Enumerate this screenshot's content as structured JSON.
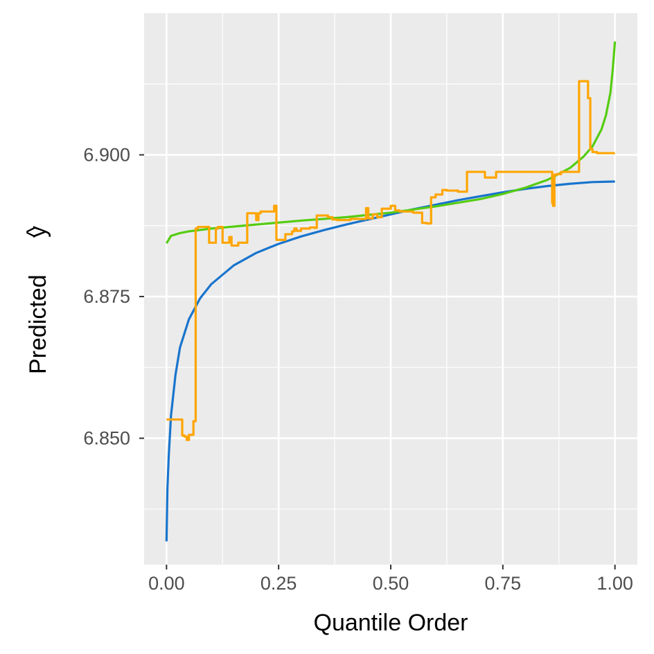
{
  "chart_data": {
    "type": "line",
    "title": "",
    "xlabel": "Quantile Order",
    "ylabel": "Predicted",
    "ylabel_hat": "^",
    "ylabel_var": "y",
    "xlim": [
      -0.05,
      1.05
    ],
    "ylim": [
      6.8277,
      6.925
    ],
    "x_ticks": [
      {
        "value": 0.0,
        "label": "0.00"
      },
      {
        "value": 0.25,
        "label": "0.25"
      },
      {
        "value": 0.5,
        "label": "0.50"
      },
      {
        "value": 0.75,
        "label": "0.75"
      },
      {
        "value": 1.0,
        "label": "1.00"
      }
    ],
    "y_ticks": [
      {
        "value": 6.85,
        "label": "6.850"
      },
      {
        "value": 6.875,
        "label": "6.875"
      },
      {
        "value": 6.9,
        "label": "6.900"
      }
    ],
    "y_minor_ticks": [
      6.8375,
      6.8625,
      6.8875,
      6.9125
    ],
    "x_minor_ticks": [
      0.125,
      0.375,
      0.625,
      0.875
    ],
    "grid": true,
    "legend": "none",
    "colors": {
      "panel": "#ebebeb",
      "grid": "#ffffff",
      "blue": "#1874cd",
      "green": "#55cc11",
      "orange": "#ffa500"
    },
    "series": [
      {
        "color": "#1874cd",
        "x": [
          0.0,
          0.002,
          0.005,
          0.01,
          0.02,
          0.03,
          0.05,
          0.075,
          0.1,
          0.15,
          0.2,
          0.25,
          0.3,
          0.35,
          0.4,
          0.45,
          0.5,
          0.55,
          0.6,
          0.65,
          0.7,
          0.75,
          0.8,
          0.85,
          0.9,
          0.95,
          1.0
        ],
        "y": [
          6.8318,
          6.8411,
          6.847,
          6.854,
          6.8612,
          6.866,
          6.871,
          6.8747,
          6.8772,
          6.8805,
          6.8827,
          6.8843,
          6.8856,
          6.8867,
          6.8877,
          6.8886,
          6.8895,
          6.8904,
          6.8912,
          6.892,
          6.8927,
          6.8934,
          6.894,
          6.8945,
          6.8949,
          6.8952,
          6.8953
        ]
      },
      {
        "color": "#55cc11",
        "x": [
          0.0,
          0.01,
          0.03,
          0.05,
          0.1,
          0.2,
          0.3,
          0.4,
          0.5,
          0.6,
          0.7,
          0.75,
          0.8,
          0.85,
          0.9,
          0.93,
          0.95,
          0.97,
          0.98,
          0.99,
          0.995,
          1.0
        ],
        "y": [
          6.8844,
          6.8857,
          6.8862,
          6.8865,
          6.887,
          6.8877,
          6.8884,
          6.889,
          6.8898,
          6.8909,
          6.8922,
          6.8931,
          6.8942,
          6.8956,
          6.8977,
          6.8997,
          6.9015,
          6.9045,
          6.907,
          6.911,
          6.915,
          6.92
        ]
      },
      {
        "color": "#ffa500",
        "step": true,
        "x": [
          0.0,
          0.035,
          0.04,
          0.045,
          0.05,
          0.06,
          0.065,
          0.07,
          0.095,
          0.1,
          0.11,
          0.115,
          0.125,
          0.14,
          0.145,
          0.16,
          0.18,
          0.2,
          0.205,
          0.21,
          0.24,
          0.245,
          0.265,
          0.28,
          0.285,
          0.29,
          0.3,
          0.32,
          0.33,
          0.335,
          0.36,
          0.37,
          0.38,
          0.41,
          0.445,
          0.45,
          0.46,
          0.47,
          0.48,
          0.5,
          0.51,
          0.52,
          0.55,
          0.57,
          0.58,
          0.59,
          0.6,
          0.615,
          0.625,
          0.65,
          0.67,
          0.675,
          0.71,
          0.735,
          0.86,
          0.862,
          0.865,
          0.87,
          0.88,
          0.9,
          0.92,
          0.93,
          0.94,
          0.945,
          0.95,
          0.96,
          1.0
        ],
        "y": [
          6.8533,
          6.8505,
          6.8503,
          6.8497,
          6.8506,
          6.853,
          6.887,
          6.8873,
          6.8845,
          6.8845,
          6.887,
          6.8873,
          6.8845,
          6.8855,
          6.884,
          6.8845,
          6.8897,
          6.8885,
          6.8897,
          6.89,
          6.891,
          6.885,
          6.886,
          6.8865,
          6.887,
          6.8866,
          6.887,
          6.8872,
          6.8871,
          6.8893,
          6.889,
          6.8886,
          6.8885,
          6.8887,
          6.8906,
          6.8888,
          6.8895,
          6.889,
          6.8905,
          6.891,
          6.8902,
          6.89,
          6.8898,
          6.888,
          6.8879,
          6.8925,
          6.893,
          6.8938,
          6.8937,
          6.8935,
          6.897,
          6.897,
          6.896,
          6.897,
          6.8915,
          6.891,
          6.8965,
          6.8966,
          6.897,
          6.897,
          6.913,
          6.913,
          6.91,
          6.901,
          6.9005,
          6.9003,
          6.9003
        ]
      }
    ]
  }
}
